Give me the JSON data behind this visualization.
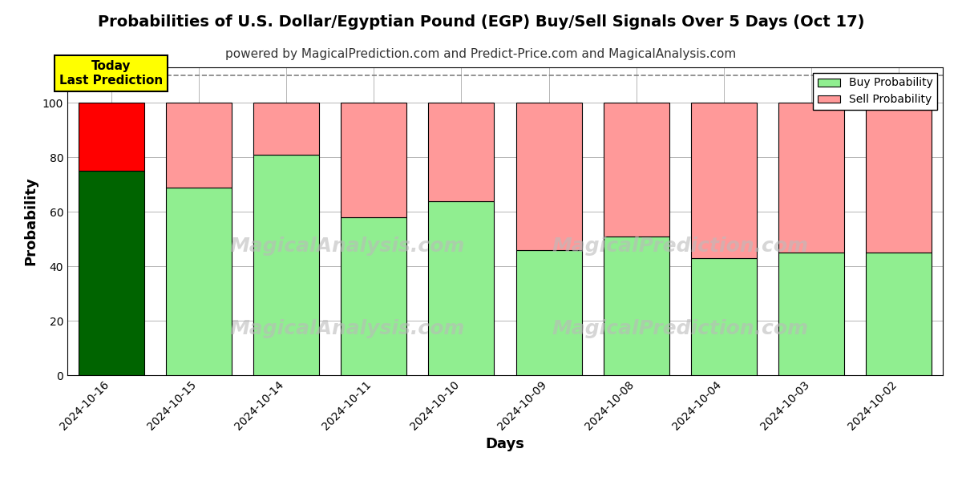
{
  "title": "Probabilities of U.S. Dollar/Egyptian Pound (EGP) Buy/Sell Signals Over 5 Days (Oct 17)",
  "subtitle": "powered by MagicalPrediction.com and Predict-Price.com and MagicalAnalysis.com",
  "xlabel": "Days",
  "ylabel": "Probability",
  "categories": [
    "2024-10-16",
    "2024-10-15",
    "2024-10-14",
    "2024-10-11",
    "2024-10-10",
    "2024-10-09",
    "2024-10-08",
    "2024-10-04",
    "2024-10-03",
    "2024-10-02"
  ],
  "buy_values": [
    75,
    69,
    81,
    58,
    64,
    46,
    51,
    43,
    45,
    45
  ],
  "sell_values": [
    25,
    31,
    19,
    42,
    36,
    54,
    49,
    57,
    55,
    55
  ],
  "buy_colors": [
    "#006400",
    "#90EE90",
    "#90EE90",
    "#90EE90",
    "#90EE90",
    "#90EE90",
    "#90EE90",
    "#90EE90",
    "#90EE90",
    "#90EE90"
  ],
  "sell_colors": [
    "#FF0000",
    "#FF9999",
    "#FF9999",
    "#FF9999",
    "#FF9999",
    "#FF9999",
    "#FF9999",
    "#FF9999",
    "#FF9999",
    "#FF9999"
  ],
  "today_label": "Today\nLast Prediction",
  "ylim": [
    0,
    113
  ],
  "yticks": [
    0,
    20,
    40,
    60,
    80,
    100
  ],
  "dashed_line_y": 110,
  "legend_buy_label": "Buy Probability",
  "legend_sell_label": "Sell Probability",
  "background_color": "#ffffff",
  "grid_color": "#aaaaaa",
  "today_box_color": "#FFFF00",
  "title_fontsize": 14,
  "subtitle_fontsize": 11
}
